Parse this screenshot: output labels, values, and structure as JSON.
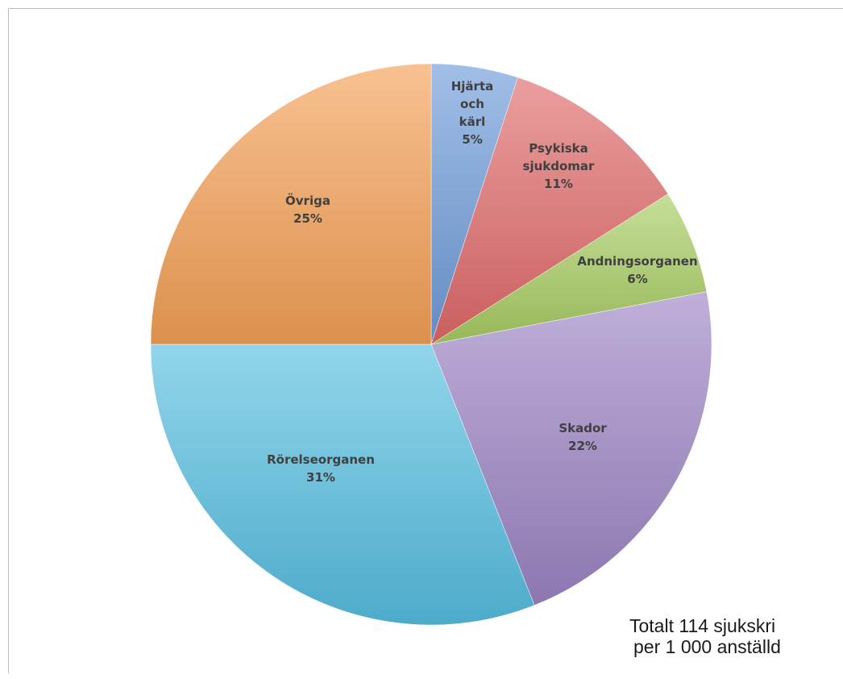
{
  "chart_data": {
    "type": "pie",
    "slices": [
      {
        "lines": [
          "Hjärta",
          "och",
          "kärl"
        ],
        "label": "Hjärta och kärl",
        "value": 5,
        "pct": "5%",
        "color": "#6f9bd9"
      },
      {
        "lines": [
          "Psykiska",
          "sjukdomar"
        ],
        "label": "Psykiska sjukdomar",
        "value": 11,
        "pct": "11%",
        "color": "#e06a6a"
      },
      {
        "lines": [
          "Andningsorganen"
        ],
        "label": "Andningsorganen",
        "value": 6,
        "pct": "6%",
        "color": "#a8cc62"
      },
      {
        "lines": [
          "Skador"
        ],
        "label": "Skador",
        "value": 22,
        "pct": "22%",
        "color": "#9c84c4"
      },
      {
        "lines": [
          "Rörelseorganen"
        ],
        "label": "Rörelseorganen",
        "value": 31,
        "pct": "31%",
        "color": "#55bee0"
      },
      {
        "lines": [
          "Övriga"
        ],
        "label": "Övriga",
        "value": 25,
        "pct": "25%",
        "color": "#f4a055"
      }
    ]
  },
  "note": {
    "line1": "Totalt 114 sjukskri",
    "line2": "per 1 000 anställd"
  }
}
